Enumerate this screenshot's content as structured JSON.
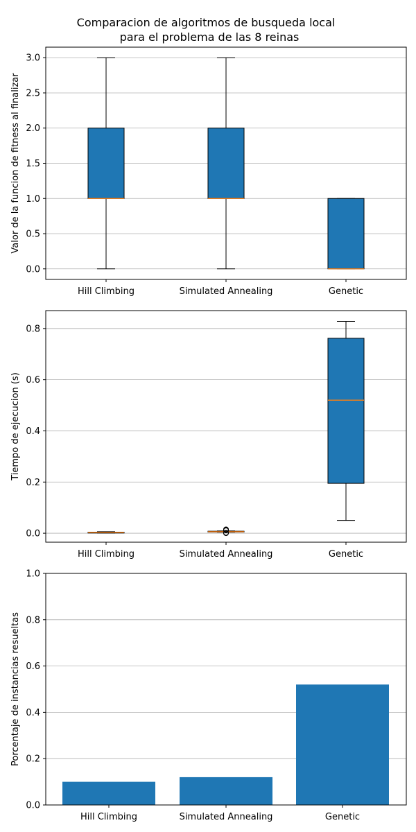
{
  "figure": {
    "title_lines": [
      "Comparacion de algoritmos de busqueda local",
      "para el problema de las 8 reinas"
    ]
  },
  "colors": {
    "box_fill": "#1f77b4",
    "median": "#ff7f0e",
    "bar": "#1f77b4",
    "grid": "#b0b0b0",
    "edge": "#000000"
  },
  "chart_data": [
    {
      "type": "boxplot",
      "ylabel": "Valor de la funcion de fitness al finalizar",
      "categories": [
        "Hill Climbing",
        "Simulated Annealing",
        "Genetic"
      ],
      "ylim": [
        -0.15,
        3.15
      ],
      "yticks": [
        0.0,
        0.5,
        1.0,
        1.5,
        2.0,
        2.5,
        3.0
      ],
      "ytick_labels": [
        "0.0",
        "0.5",
        "1.0",
        "1.5",
        "2.0",
        "2.5",
        "3.0"
      ],
      "grid": "y",
      "boxes": [
        {
          "whislo": 0,
          "q1": 1,
          "med": 1,
          "q3": 2,
          "whishi": 3,
          "fliers": []
        },
        {
          "whislo": 0,
          "q1": 1,
          "med": 1,
          "q3": 2,
          "whishi": 3,
          "fliers": []
        },
        {
          "whislo": 0,
          "q1": 0,
          "med": 0,
          "q3": 1,
          "whishi": 1,
          "fliers": []
        }
      ]
    },
    {
      "type": "boxplot",
      "ylabel": "Tiempo de ejecucion (s)",
      "categories": [
        "Hill Climbing",
        "Simulated Annealing",
        "Genetic"
      ],
      "ylim": [
        -0.035,
        0.87
      ],
      "yticks": [
        0.0,
        0.2,
        0.4,
        0.6,
        0.8
      ],
      "ytick_labels": [
        "0.0",
        "0.2",
        "0.4",
        "0.6",
        "0.8"
      ],
      "grid": "y",
      "boxes": [
        {
          "whislo": 0.001,
          "q1": 0.002,
          "med": 0.003,
          "q3": 0.004,
          "whishi": 0.006,
          "fliers": []
        },
        {
          "whislo": 0.004,
          "q1": 0.005,
          "med": 0.006,
          "q3": 0.008,
          "whishi": 0.009,
          "fliers": [
            0.0,
            0.002,
            0.011,
            0.013,
            0.015
          ]
        },
        {
          "whislo": 0.05,
          "q1": 0.195,
          "med": 0.52,
          "q3": 0.762,
          "whishi": 0.828,
          "fliers": []
        }
      ]
    },
    {
      "type": "bar",
      "ylabel": "Porcentaje de instancias resueltas",
      "categories": [
        "Hill Climbing",
        "Simulated Annealing",
        "Genetic"
      ],
      "values": [
        0.1,
        0.12,
        0.52
      ],
      "ylim": [
        0,
        1.0
      ],
      "yticks": [
        0.0,
        0.2,
        0.4,
        0.6,
        0.8,
        1.0
      ],
      "ytick_labels": [
        "0.0",
        "0.2",
        "0.4",
        "0.6",
        "0.8",
        "1.0"
      ],
      "grid": "y"
    }
  ]
}
